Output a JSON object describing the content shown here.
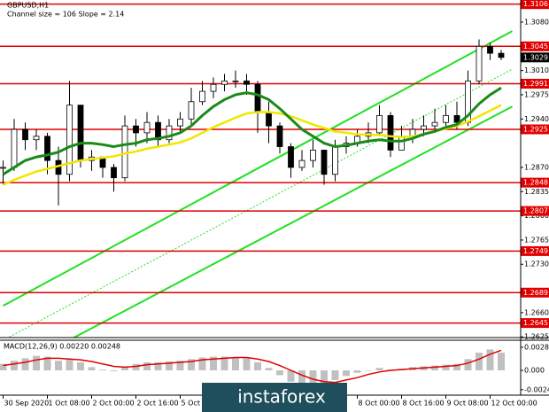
{
  "chart_data": {
    "type": "candlestick",
    "title": "GBPUSD,H1",
    "subtitle": "Channel size = 106 Slope = 2.14",
    "categories": [
      "30 Sep 2020",
      null,
      null,
      null,
      "1 Oct 08:00",
      null,
      null,
      null,
      "2 Oct 00:00",
      null,
      null,
      null,
      "2 Oct 16:00",
      null,
      null,
      null,
      "5 Oct 08:00",
      null,
      null,
      null,
      null,
      null,
      null,
      null,
      null,
      null,
      null,
      null,
      null,
      null,
      null,
      null,
      "8 Oct 00:00",
      null,
      null,
      null,
      "8 Oct 16:00",
      null,
      null,
      null,
      "9 Oct 08:00",
      null,
      null,
      null,
      "12 Oct 00:00",
      null
    ],
    "close": [
      1.287,
      1.2925,
      1.291,
      1.2915,
      1.288,
      1.286,
      1.296,
      1.288,
      1.2885,
      1.287,
      1.2855,
      1.293,
      1.292,
      1.2935,
      1.291,
      1.293,
      1.294,
      1.2965,
      1.298,
      1.299,
      1.2995,
      1.2995,
      1.299,
      1.295,
      1.293,
      1.29,
      1.287,
      1.288,
      1.2895,
      1.286,
      1.29,
      1.2905,
      1.2915,
      1.292,
      1.2945,
      1.2895,
      1.2915,
      1.2925,
      1.293,
      1.2935,
      1.2945,
      1.2935,
      1.2995,
      1.3045,
      1.3035,
      1.3029
    ],
    "high": [
      1.288,
      1.294,
      1.2935,
      1.2925,
      1.292,
      1.29,
      1.2995,
      1.296,
      1.2895,
      1.2885,
      1.2875,
      1.2945,
      1.294,
      1.295,
      1.2945,
      1.294,
      1.295,
      1.2985,
      1.2995,
      1.3,
      1.3005,
      1.301,
      1.3005,
      1.2995,
      1.2965,
      1.2935,
      1.2905,
      1.2895,
      1.291,
      1.2895,
      1.291,
      1.2915,
      1.2925,
      1.2935,
      1.296,
      1.295,
      1.293,
      1.294,
      1.2945,
      1.2955,
      1.296,
      1.2965,
      1.301,
      1.3055,
      1.305,
      1.304
    ],
    "low": [
      1.2845,
      1.2865,
      1.2895,
      1.2895,
      1.286,
      1.2815,
      1.285,
      1.287,
      1.2865,
      1.2855,
      1.2835,
      1.285,
      1.29,
      1.2905,
      1.29,
      1.2905,
      1.292,
      1.293,
      1.296,
      1.297,
      1.298,
      1.2985,
      1.2975,
      1.292,
      1.2905,
      1.289,
      1.2855,
      1.2865,
      1.287,
      1.2845,
      1.285,
      1.289,
      1.29,
      1.2905,
      1.2915,
      1.2885,
      1.2895,
      1.2905,
      1.2915,
      1.2925,
      1.293,
      1.2925,
      1.293,
      1.299,
      1.3025,
      1.3025
    ],
    "up_color": "#ffffff",
    "down_color": "#000000",
    "series": [
      {
        "color": "#f2e600",
        "values": [
          1.2845,
          1.2852,
          1.2858,
          1.2864,
          1.2868,
          1.2872,
          1.2876,
          1.288,
          1.2882,
          1.2884,
          1.2886,
          1.289,
          1.2893,
          1.2897,
          1.29,
          1.2903,
          1.2906,
          1.2912,
          1.292,
          1.2928,
          1.2935,
          1.2942,
          1.2948,
          1.295,
          1.295,
          1.2948,
          1.2944,
          1.2938,
          1.2932,
          1.2927,
          1.2922,
          1.292,
          1.2918,
          1.2917,
          1.2917,
          1.2915,
          1.2914,
          1.2915,
          1.2918,
          1.2922,
          1.2926,
          1.293,
          1.2936,
          1.2944,
          1.2952,
          1.296
        ]
      },
      {
        "color": "#1a8a1a",
        "values": [
          1.286,
          1.287,
          1.288,
          1.2885,
          1.2888,
          1.2892,
          1.29,
          1.2905,
          1.2905,
          1.2903,
          1.29,
          1.2903,
          1.2905,
          1.291,
          1.2912,
          1.2915,
          1.292,
          1.293,
          1.2945,
          1.2958,
          1.2968,
          1.2975,
          1.2978,
          1.2975,
          1.2968,
          1.2955,
          1.294,
          1.2925,
          1.2915,
          1.2905,
          1.29,
          1.2902,
          1.2905,
          1.2908,
          1.291,
          1.2908,
          1.2908,
          1.2912,
          1.2918,
          1.2922,
          1.2928,
          1.2932,
          1.2945,
          1.2962,
          1.2975,
          1.2985
        ]
      }
    ],
    "channel": {
      "color": "#22e022",
      "upper": [
        1.267,
        1.3067
      ],
      "middle": [
        1.262,
        1.3012
      ],
      "lower": [
        1.257,
        1.2958
      ]
    },
    "ylim": [
      1.2624,
      1.3112
    ],
    "yticks": [
      {
        "value": 1.308,
        "label": "1.3080"
      },
      {
        "value": 1.301,
        "label": "1.3010"
      },
      1.2975,
      {
        "value": 1.294,
        "label": "1.2940"
      },
      {
        "value": 1.287,
        "label": "1.2870"
      },
      1.2835,
      {
        "value": 1.28,
        "label": "1.2800"
      },
      1.2765,
      {
        "value": 1.273,
        "label": "1.2730"
      },
      {
        "value": 1.266,
        "label": "1.2660"
      },
      1.2625
    ],
    "levels": [
      1.3106,
      1.3045,
      1.2991,
      1.2925,
      1.2848,
      1.2807,
      1.2749,
      1.2689,
      1.2645
    ],
    "level_color": "#e00000",
    "current_price": 1.3029,
    "macd": {
      "label": "MACD(12,26,9) 0.00220 0.00248",
      "values": [
        0.0008,
        0.0012,
        0.0015,
        0.0018,
        0.0017,
        0.0012,
        0.0014,
        0.001,
        0.0004,
        0.0001,
        -0.0001,
        0.0004,
        0.0008,
        0.001,
        0.001,
        0.0011,
        0.0012,
        0.0014,
        0.0016,
        0.0017,
        0.0017,
        0.0016,
        0.0015,
        0.001,
        0.0003,
        -0.0006,
        -0.0014,
        -0.0019,
        -0.002,
        -0.0018,
        -0.0012,
        -0.0007,
        -0.0003,
        0.0,
        0.0003,
        0.0001,
        0.0002,
        0.0004,
        0.0005,
        0.0006,
        0.0007,
        0.0008,
        0.0014,
        0.0022,
        0.0026,
        0.0022
      ],
      "signal": [
        0.0006,
        0.0008,
        0.001,
        0.0013,
        0.0015,
        0.0015,
        0.0014,
        0.0013,
        0.0011,
        0.0008,
        0.0005,
        0.0004,
        0.0005,
        0.0007,
        0.0008,
        0.0009,
        0.001,
        0.0011,
        0.0013,
        0.0014,
        0.0015,
        0.0016,
        0.0016,
        0.0014,
        0.0011,
        0.0006,
        0.0,
        -0.0006,
        -0.0011,
        -0.0014,
        -0.0015,
        -0.0012,
        -0.0009,
        -0.0005,
        -0.0002,
        0.0,
        0.0001,
        0.0002,
        0.0003,
        0.0004,
        0.0005,
        0.0006,
        0.0009,
        0.0014,
        0.002,
        0.00248
      ],
      "bar_color": "#c0c0c0",
      "signal_color": "#e00000",
      "ylim": [
        -0.00308,
        0.00374
      ],
      "yticks": [
        0.00286,
        {
          "value": 0,
          "label": "0.000"
        },
        {
          "value": -0.0024,
          "label": "-0.0024"
        }
      ]
    },
    "watermark": "instaforex"
  }
}
